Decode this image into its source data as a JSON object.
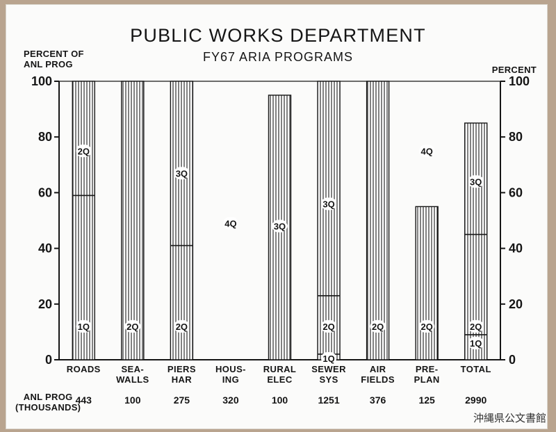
{
  "watermark": "沖縄県公文書館",
  "anl_prog_label": [
    "ANL PROG",
    "(THOUSANDS)"
  ],
  "chart_data": {
    "type": "bar",
    "title": "PUBLIC WORKS DEPARTMENT",
    "subtitle": "FY67 ARIA PROGRAMS",
    "ylabel_left": [
      "PERCENT OF",
      "ANL PROG"
    ],
    "ylabel_right": "PERCENT",
    "ylim": [
      0,
      100
    ],
    "yticks": [
      0,
      20,
      40,
      60,
      80,
      100
    ],
    "categories": [
      {
        "label": [
          "ROADS"
        ],
        "value": 100,
        "anl_prog": "443",
        "dividers": [
          59
        ],
        "quarters": [
          {
            "text": "1Q",
            "y": 12
          },
          {
            "text": "2Q",
            "y": 75
          }
        ]
      },
      {
        "label": [
          "SEA-",
          "WALLS"
        ],
        "value": 100,
        "anl_prog": "100",
        "dividers": [],
        "quarters": [
          {
            "text": "2Q",
            "y": 12
          }
        ]
      },
      {
        "label": [
          "PIERS",
          "HAR"
        ],
        "value": 100,
        "anl_prog": "275",
        "dividers": [
          41
        ],
        "quarters": [
          {
            "text": "2Q",
            "y": 12
          },
          {
            "text": "3Q",
            "y": 67
          }
        ]
      },
      {
        "label": [
          "HOUS-",
          "ING"
        ],
        "value": 0,
        "anl_prog": "320",
        "dividers": [],
        "quarters": [
          {
            "text": "4Q",
            "y": 49
          }
        ]
      },
      {
        "label": [
          "RURAL",
          "ELEC"
        ],
        "value": 95,
        "anl_prog": "100",
        "dividers": [],
        "quarters": [
          {
            "text": "3Q",
            "y": 48
          }
        ]
      },
      {
        "label": [
          "SEWER",
          "SYS"
        ],
        "value": 100,
        "anl_prog": "1251",
        "dividers": [
          2,
          23
        ],
        "quarters": [
          {
            "text": "1Q",
            "y": 0.5
          },
          {
            "text": "2Q",
            "y": 12
          },
          {
            "text": "3Q",
            "y": 56
          }
        ]
      },
      {
        "label": [
          "AIR",
          "FIELDS"
        ],
        "value": 100,
        "anl_prog": "376",
        "dividers": [],
        "quarters": [
          {
            "text": "2Q",
            "y": 12
          }
        ]
      },
      {
        "label": [
          "PRE-",
          "PLAN"
        ],
        "value": 55,
        "anl_prog": "125",
        "dividers": [],
        "quarters": [
          {
            "text": "2Q",
            "y": 12
          },
          {
            "text": "4Q",
            "y": 75
          }
        ]
      },
      {
        "label": [
          "TOTAL"
        ],
        "value": 85,
        "anl_prog": "2990",
        "dividers": [
          9,
          45
        ],
        "quarters": [
          {
            "text": "1Q",
            "y": 6
          },
          {
            "text": "2Q",
            "y": 12
          },
          {
            "text": "3Q",
            "y": 64
          }
        ]
      }
    ],
    "grid": false,
    "legend": "none"
  }
}
